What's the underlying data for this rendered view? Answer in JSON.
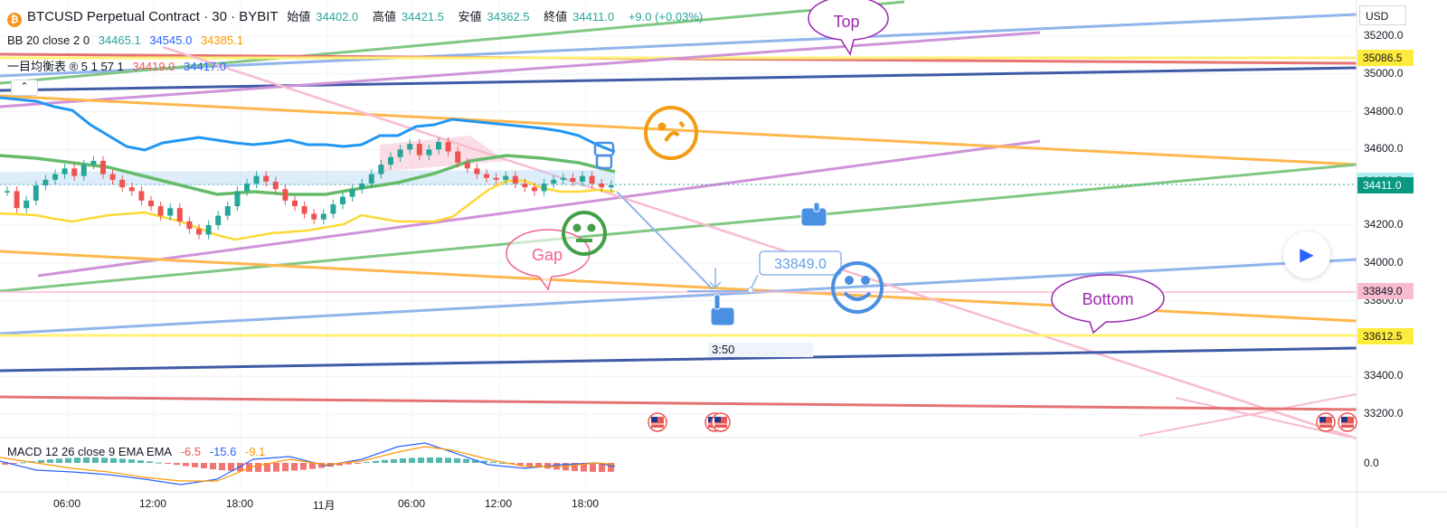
{
  "header": {
    "symbol_title": "BTCUSD Perpetual Contract · 30 · BYBIT",
    "ohlc": [
      {
        "label": "始値",
        "value": "34402.0"
      },
      {
        "label": "高値",
        "value": "34421.5"
      },
      {
        "label": "安値",
        "value": "34362.5"
      },
      {
        "label": "終値",
        "value": "34411.0"
      }
    ],
    "change": "+9.0 (+0.03%)",
    "coin_icon_glyph": "₿"
  },
  "indicators": {
    "bb": {
      "label": "BB 20 close 2 0",
      "values": [
        "34465.1",
        "34545.0",
        "34385.1"
      ]
    },
    "ichimoku": {
      "label": "一目均衡表 ® 5 1 57 1",
      "values": [
        "34419.0",
        "34417.0"
      ]
    },
    "macd": {
      "label": "MACD 12 26 close 9 EMA EMA",
      "values": [
        "-6.5",
        "-15.6",
        "-9.1"
      ]
    }
  },
  "price_scale": {
    "currency": "USD",
    "ticks": [
      "35200.0",
      "35000.0",
      "34800.0",
      "34600.0",
      "34200.0",
      "34000.0",
      "33800.0",
      "33400.0",
      "33200.0"
    ],
    "macd_tick": "0.0",
    "tags": [
      {
        "value": "35086.5",
        "color": "#ffeb3b",
        "text_color": "#131722"
      },
      {
        "value": "34433.5",
        "color": "#b2ebf2",
        "text_color": "#131722"
      },
      {
        "value": "34411.0",
        "color": "#089981",
        "text_color": "#ffffff"
      },
      {
        "value": "33849.0",
        "color": "#f8bbd0",
        "text_color": "#131722"
      },
      {
        "value": "33612.5",
        "color": "#ffeb3b",
        "text_color": "#131722"
      }
    ]
  },
  "time_axis": [
    "06:00",
    "12:00",
    "18:00",
    "11月",
    "06:00",
    "12:00",
    "18:00"
  ],
  "annotations": {
    "callouts": [
      {
        "text": "Top",
        "color": "#9c27b0"
      },
      {
        "text": "Gap",
        "color": "#f06292"
      },
      {
        "text": "Bottom",
        "color": "#9c27b0"
      }
    ],
    "price_label": "33849.0",
    "countdown": "3:50"
  },
  "chart_data": {
    "type": "candlestick",
    "title": "BTCUSD Perpetual Contract · 30 · BYBIT",
    "y_range": [
      33100,
      35350
    ],
    "last_price": 34411.0,
    "series": [
      {
        "name": "BB 20 close 2 0",
        "values": [
          34465.1,
          34545.0,
          34385.1
        ]
      },
      {
        "name": "一目均衡表 ® 5 1 57 1",
        "values": [
          34419.0,
          34417.0
        ]
      },
      {
        "name": "MACD 12 26 close 9 EMA EMA",
        "values": [
          -6.5,
          -15.6,
          -9.1
        ]
      }
    ],
    "horizontal_levels": [
      35086.5,
      34433.5,
      34411.0,
      33849.0,
      33612.5
    ],
    "colors": {
      "up": "#26a69a",
      "down": "#ef5350",
      "bb_upper": "#2196f3",
      "bb_basis": "#4caf50",
      "bb_lower": "#ffeb3b"
    },
    "grid": true
  }
}
